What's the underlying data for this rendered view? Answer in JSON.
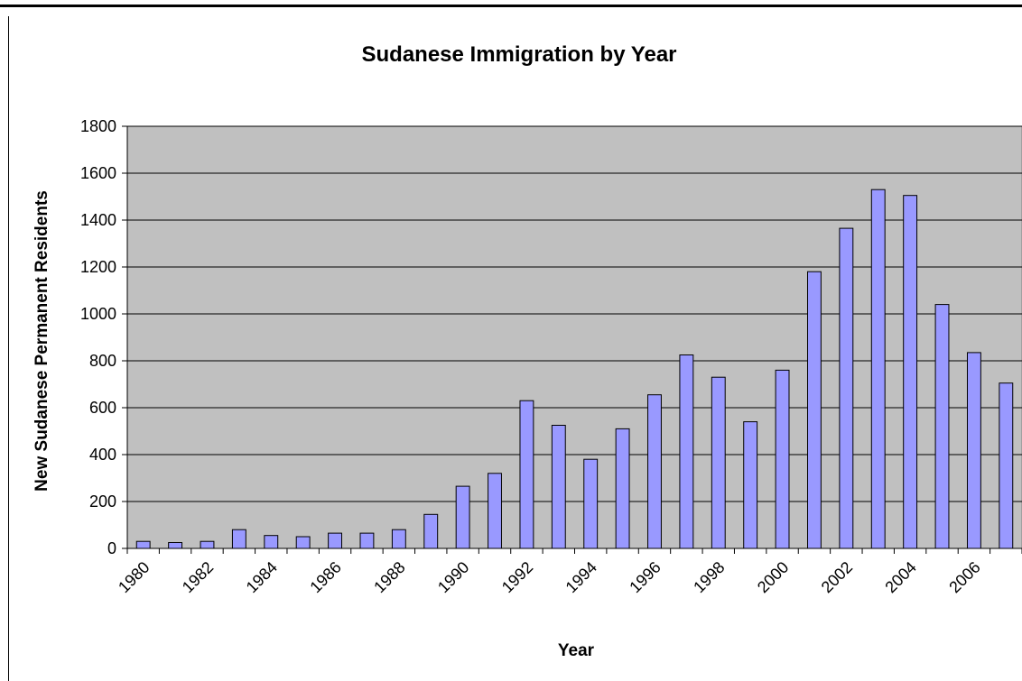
{
  "chart_data": {
    "type": "bar",
    "title": "Sudanese Immigration by Year",
    "xlabel": "Year",
    "ylabel": "New Sudanese Permanent Residents",
    "ylim": [
      0,
      1800
    ],
    "yticks": [
      "0",
      "200",
      "400",
      "600",
      "800",
      "1000",
      "1200",
      "1400",
      "1600",
      "1800"
    ],
    "categories": [
      "1980",
      "1981",
      "1982",
      "1983",
      "1984",
      "1985",
      "1986",
      "1987",
      "1988",
      "1989",
      "1990",
      "1991",
      "1992",
      "1993",
      "1994",
      "1995",
      "1996",
      "1997",
      "1998",
      "1999",
      "2000",
      "2001",
      "2002",
      "2003",
      "2004",
      "2005",
      "2006",
      "2007"
    ],
    "x_tick_labels": [
      "1980",
      "1982",
      "1984",
      "1986",
      "1988",
      "1990",
      "1992",
      "1994",
      "1996",
      "1998",
      "2000",
      "2002",
      "2004",
      "2006"
    ],
    "values": [
      30,
      25,
      30,
      80,
      55,
      50,
      65,
      65,
      80,
      145,
      265,
      320,
      630,
      525,
      380,
      510,
      655,
      825,
      730,
      540,
      760,
      1180,
      1365,
      1530,
      1505,
      1040,
      835,
      705
    ],
    "grid": true,
    "legend": "none",
    "colors": {
      "bar_fill": "#9999ff",
      "bar_stroke": "#000000",
      "plot_background": "#c0c0c0",
      "gridline": "#000000"
    }
  }
}
